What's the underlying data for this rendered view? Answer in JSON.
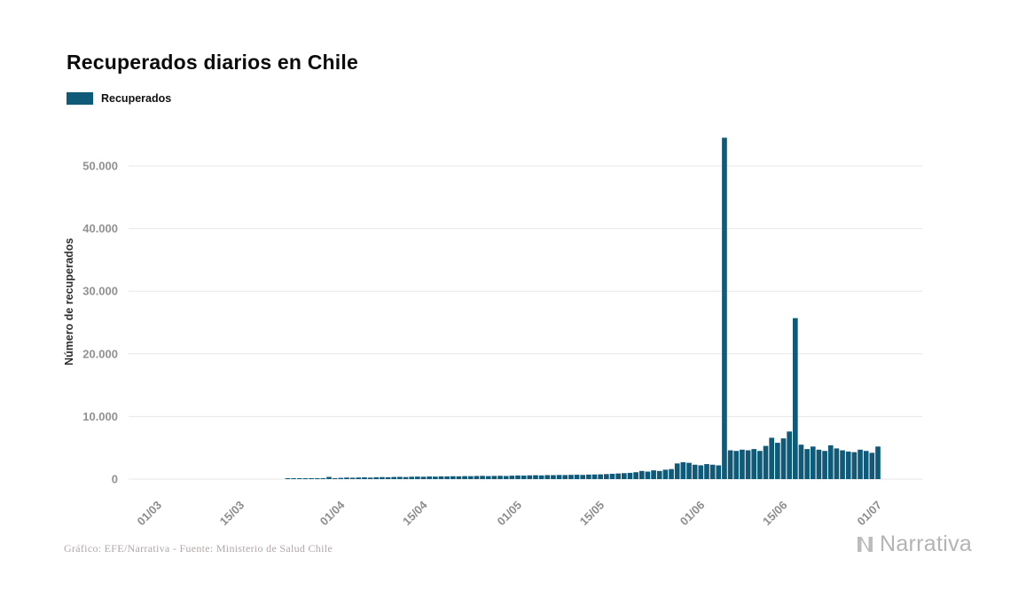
{
  "title": "Recuperados diarios en Chile",
  "legend": {
    "label": "Recuperados",
    "color": "#0e5a78"
  },
  "y_axis_label": "Número de recuperados",
  "footer": {
    "credit": "Gráfico: EFE/Narrativa - Fuente: Ministerio de Salud Chile"
  },
  "brand": {
    "name": "Narrativa"
  },
  "chart_data": {
    "type": "bar",
    "title": "Recuperados diarios en Chile",
    "series_name": "Recuperados",
    "xlabel": "",
    "ylabel": "Número de recuperados",
    "bar_color": "#0e5a78",
    "grid": "horizontal",
    "legend_position": "top-left",
    "ylim": [
      0,
      55000
    ],
    "y_ticks": [
      0,
      10000,
      20000,
      30000,
      40000,
      50000
    ],
    "y_tick_labels": [
      "0",
      "10.000",
      "20.000",
      "30.000",
      "40.000",
      "50.000"
    ],
    "x_tick_labels": [
      "01/03",
      "15/03",
      "01/04",
      "15/04",
      "01/05",
      "15/05",
      "01/06",
      "15/06",
      "01/07"
    ],
    "x_tick_day_index": [
      0,
      14,
      31,
      45,
      61,
      75,
      92,
      106,
      122
    ],
    "x": [
      "01/03",
      "02/03",
      "03/03",
      "04/03",
      "05/03",
      "06/03",
      "07/03",
      "08/03",
      "09/03",
      "10/03",
      "11/03",
      "12/03",
      "13/03",
      "14/03",
      "15/03",
      "16/03",
      "17/03",
      "18/03",
      "19/03",
      "20/03",
      "21/03",
      "22/03",
      "23/03",
      "24/03",
      "25/03",
      "26/03",
      "27/03",
      "28/03",
      "29/03",
      "30/03",
      "31/03",
      "01/04",
      "02/04",
      "03/04",
      "04/04",
      "05/04",
      "06/04",
      "07/04",
      "08/04",
      "09/04",
      "10/04",
      "11/04",
      "12/04",
      "13/04",
      "14/04",
      "15/04",
      "16/04",
      "17/04",
      "18/04",
      "19/04",
      "20/04",
      "21/04",
      "22/04",
      "23/04",
      "24/04",
      "25/04",
      "26/04",
      "27/04",
      "28/04",
      "29/04",
      "30/04",
      "01/05",
      "02/05",
      "03/05",
      "04/05",
      "05/05",
      "06/05",
      "07/05",
      "08/05",
      "09/05",
      "10/05",
      "11/05",
      "12/05",
      "13/05",
      "14/05",
      "15/05",
      "16/05",
      "17/05",
      "18/05",
      "19/05",
      "20/05",
      "21/05",
      "22/05",
      "23/05",
      "24/05",
      "25/05",
      "26/05",
      "27/05",
      "28/05",
      "29/05",
      "30/05",
      "31/05",
      "01/06",
      "02/06",
      "03/06",
      "04/06",
      "05/06",
      "06/06",
      "07/06",
      "08/06",
      "09/06",
      "10/06",
      "11/06",
      "12/06",
      "13/06",
      "14/06",
      "15/06",
      "16/06",
      "17/06",
      "18/06",
      "19/06",
      "20/06",
      "21/06",
      "22/06",
      "23/06",
      "24/06",
      "25/06",
      "26/06",
      "27/06",
      "28/06",
      "29/06",
      "30/06",
      "01/07"
    ],
    "values": [
      0,
      0,
      0,
      0,
      0,
      0,
      0,
      0,
      0,
      0,
      0,
      0,
      0,
      0,
      0,
      0,
      0,
      0,
      0,
      0,
      0,
      0,
      5,
      10,
      20,
      40,
      60,
      80,
      120,
      350,
      150,
      200,
      250,
      220,
      260,
      280,
      240,
      300,
      320,
      300,
      340,
      360,
      330,
      380,
      400,
      380,
      420,
      400,
      440,
      430,
      460,
      450,
      480,
      470,
      500,
      520,
      480,
      510,
      530,
      500,
      550,
      580,
      560,
      600,
      620,
      590,
      640,
      630,
      660,
      650,
      680,
      700,
      670,
      720,
      740,
      760,
      800,
      850,
      900,
      950,
      1000,
      1100,
      1300,
      1200,
      1400,
      1300,
      1500,
      1600,
      2500,
      2700,
      2600,
      2300,
      2200,
      2400,
      2300,
      2200,
      54500,
      4600,
      4500,
      4700,
      4600,
      4800,
      4500,
      5300,
      6600,
      5800,
      6500,
      7600,
      25700,
      5500,
      4800,
      5200,
      4700,
      4500,
      5400,
      4900,
      4600,
      4400,
      4300,
      4700,
      4500,
      4200,
      5200
    ]
  }
}
